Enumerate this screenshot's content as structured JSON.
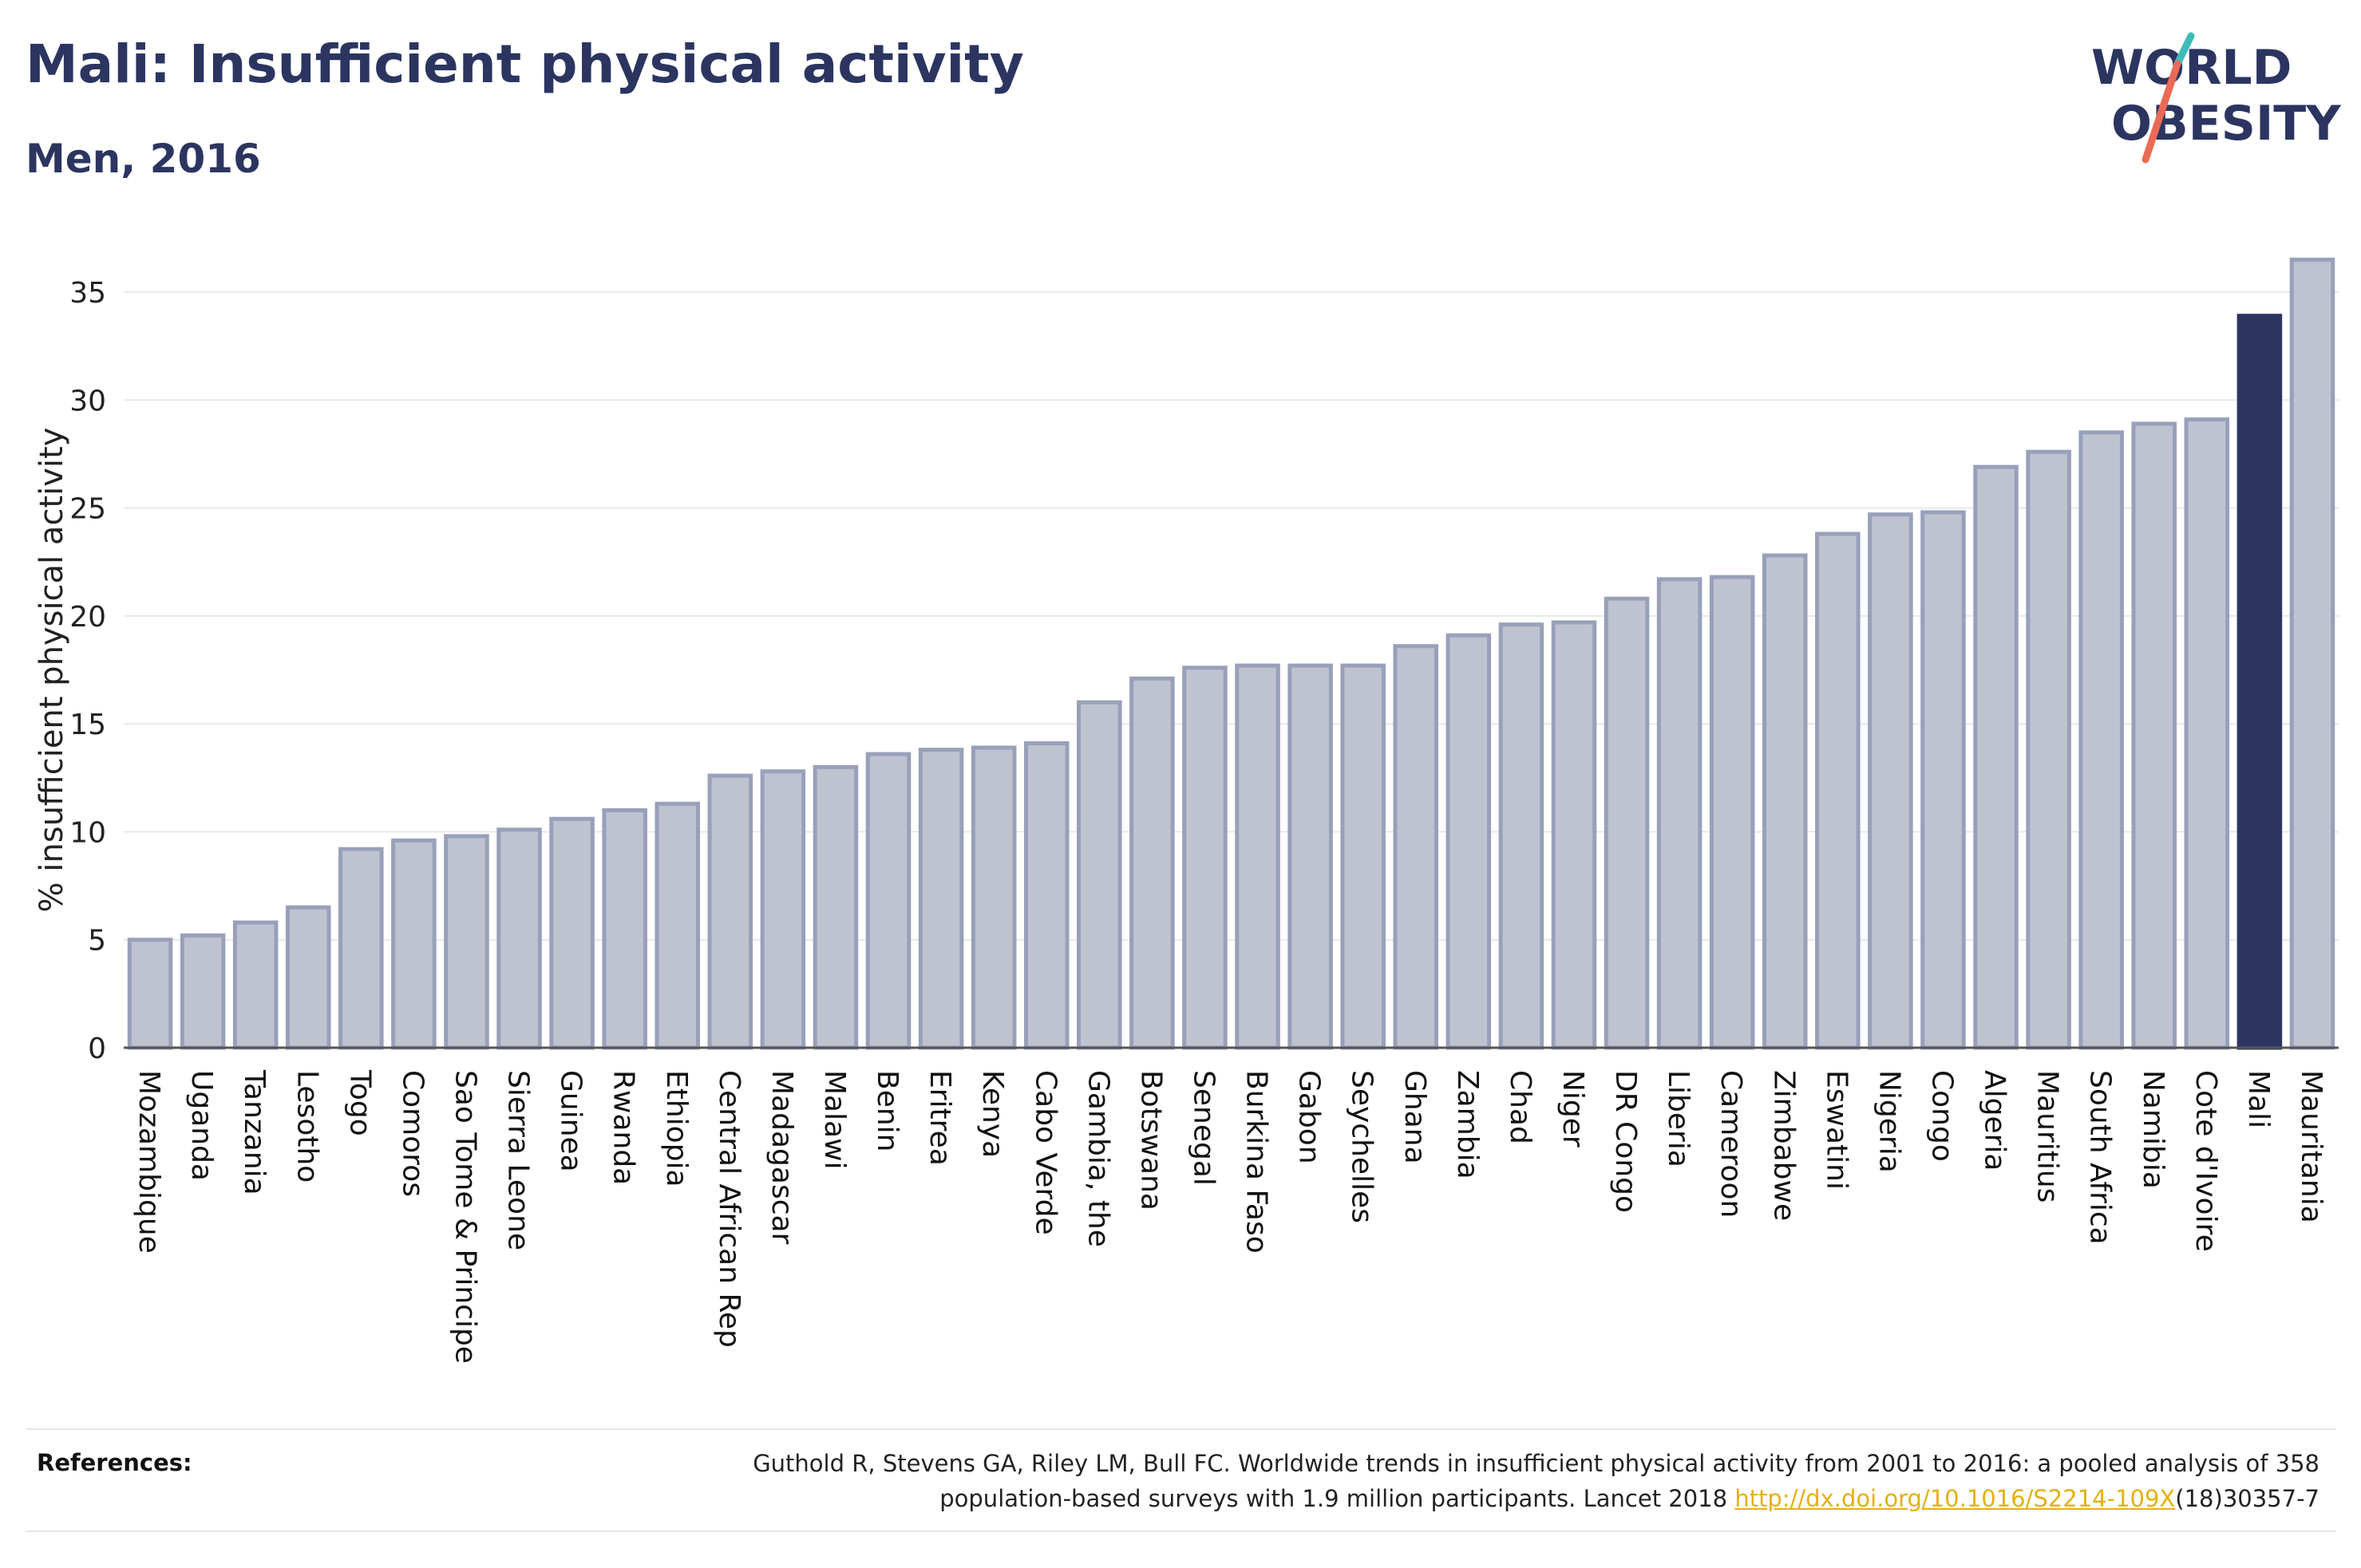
{
  "header": {
    "title": "Mali: Insufficient physical activity",
    "subtitle": "Men, 2016"
  },
  "logo": {
    "line1": "WORLD",
    "line2": "OBESITY"
  },
  "colors": {
    "bar": "#bfc3d0",
    "bar_border": "#98a0ba",
    "highlight": "#2b3560",
    "text": "#2b3560",
    "link": "#e5b010"
  },
  "chart_data": {
    "type": "bar",
    "ylabel": "% insufficient physical activity",
    "ylim": [
      0,
      37
    ],
    "yticks": [
      0,
      5,
      10,
      15,
      20,
      25,
      30,
      35
    ],
    "grid": true,
    "highlight": "Mali",
    "categories": [
      "Mozambique",
      "Uganda",
      "Tanzania",
      "Lesotho",
      "Togo",
      "Comoros",
      "Sao Tome & Principe",
      "Sierra Leone",
      "Guinea",
      "Rwanda",
      "Ethiopia",
      "Central African Rep",
      "Madagascar",
      "Malawi",
      "Benin",
      "Eritrea",
      "Kenya",
      "Cabo Verde",
      "Gambia, the",
      "Botswana",
      "Senegal",
      "Burkina Faso",
      "Gabon",
      "Seychelles",
      "Ghana",
      "Zambia",
      "Chad",
      "Niger",
      "DR Congo",
      "Liberia",
      "Cameroon",
      "Zimbabwe",
      "Eswatini",
      "Nigeria",
      "Congo",
      "Algeria",
      "Mauritius",
      "South Africa",
      "Namibia",
      "Cote d'Ivoire",
      "Mali",
      "Mauritania"
    ],
    "values": [
      5.0,
      5.2,
      5.8,
      6.5,
      9.2,
      9.6,
      9.8,
      10.1,
      10.6,
      11.0,
      11.3,
      12.6,
      12.8,
      13.0,
      13.6,
      13.8,
      13.9,
      14.1,
      16.0,
      17.1,
      17.6,
      17.7,
      17.7,
      17.7,
      18.6,
      19.1,
      19.6,
      19.7,
      20.8,
      21.7,
      21.8,
      22.8,
      23.8,
      24.7,
      24.8,
      26.9,
      27.6,
      28.5,
      28.9,
      29.1,
      33.9,
      36.5
    ]
  },
  "references": {
    "label": "References:",
    "line1": "Guthold R, Stevens GA, Riley LM, Bull FC. Worldwide trends in insufficient physical activity from 2001 to 2016: a pooled analysis of 358",
    "line2_prefix": "population-based surveys with 1.9 million participants. Lancet 2018 ",
    "link": "http://dx.doi.org/10.1016/S2214-109X",
    "line2_suffix": "(18)30357-7"
  }
}
